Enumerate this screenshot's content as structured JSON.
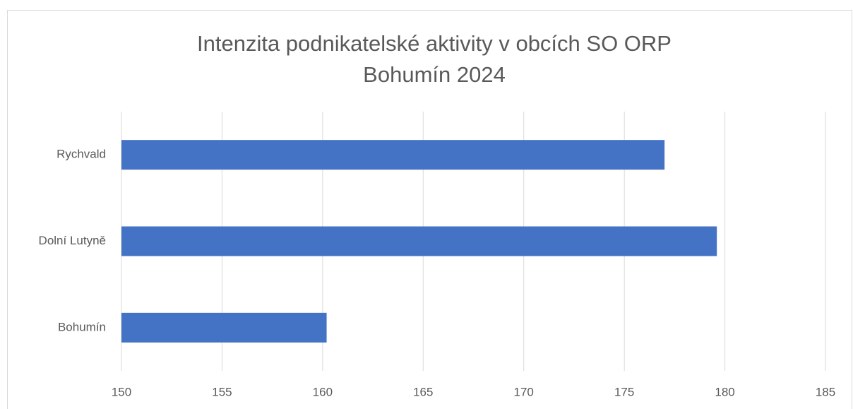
{
  "chart_data": {
    "type": "bar",
    "orientation": "horizontal",
    "title": "Intenzita podnikatelské aktivity v obcích SO ORP Bohumín 2024",
    "categories": [
      "Bohumín",
      "Dolní Lutyně",
      "Rychvald"
    ],
    "values": [
      160.2,
      179.6,
      177.0
    ],
    "color": "#4472c4",
    "xlim": [
      150,
      185
    ],
    "xticks": [
      150,
      155,
      160,
      165,
      170,
      175,
      180,
      185
    ],
    "grid": true
  }
}
